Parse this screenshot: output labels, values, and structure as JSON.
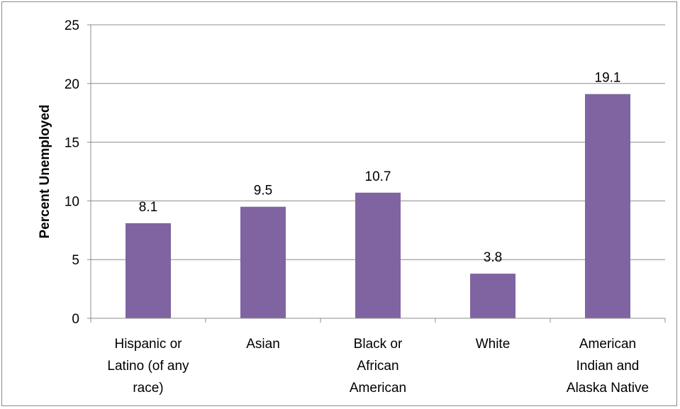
{
  "chart_data": {
    "type": "bar",
    "title": "",
    "xlabel": "",
    "ylabel": "Percent Unemployed",
    "ylim": [
      0,
      25
    ],
    "yticks": [
      0,
      5,
      10,
      15,
      20,
      25
    ],
    "grid": true,
    "legend": "none",
    "categories": [
      [
        "Hispanic or",
        "Latino (of any",
        "race)"
      ],
      [
        "Asian"
      ],
      [
        "Black or",
        "African",
        "American"
      ],
      [
        "White"
      ],
      [
        "American",
        "Indian and",
        "Alaska Native"
      ]
    ],
    "values": [
      8.1,
      9.5,
      10.7,
      3.8,
      19.1
    ],
    "data_labels": [
      "8.1",
      "9.5",
      "10.7",
      "3.8",
      "19.1"
    ],
    "bar_color": "#8064a2",
    "gridline_color": "#8c8c8c"
  }
}
